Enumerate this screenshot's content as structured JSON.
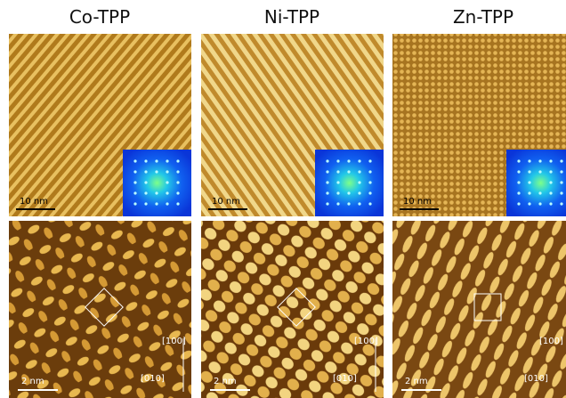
{
  "columns": [
    {
      "title": "Co-TPP",
      "overview": {
        "scale_bar": "10 nm"
      },
      "detail": {
        "scale_bar": "2 nm",
        "directions": [
          "[100]",
          "[010]"
        ]
      }
    },
    {
      "title": "Ni-TPP",
      "overview": {
        "scale_bar": "10 nm"
      },
      "detail": {
        "scale_bar": "2 nm",
        "directions": [
          "[100]",
          "[010]"
        ]
      }
    },
    {
      "title": "Zn-TPP",
      "overview": {
        "scale_bar": "10 nm"
      },
      "detail": {
        "scale_bar": "2 nm",
        "directions": [
          "[100]",
          "[010]"
        ]
      }
    }
  ]
}
